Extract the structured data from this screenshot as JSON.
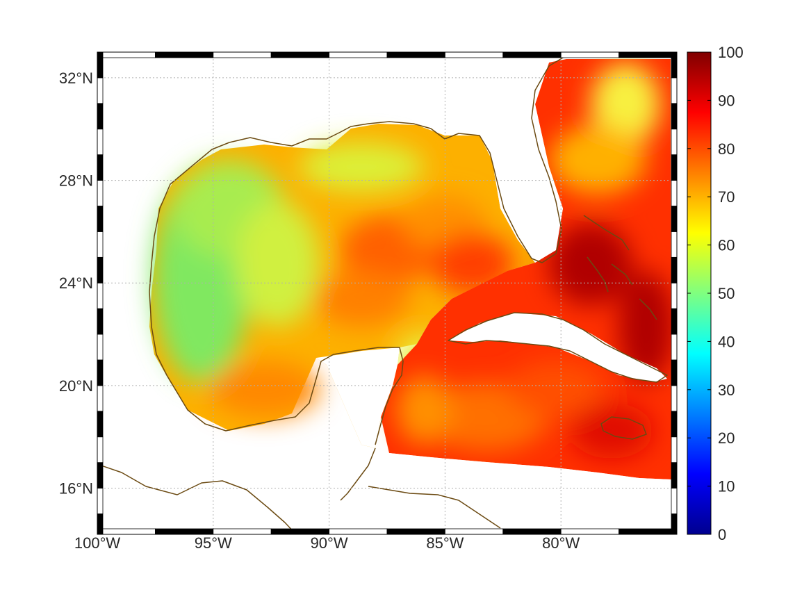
{
  "map": {
    "region": "Gulf of Mexico and Western Caribbean",
    "lon_range": [
      -100,
      -75
    ],
    "lat_range": [
      14.2,
      33
    ],
    "lon_ticks": [
      {
        "value": -100,
        "label": "100°W"
      },
      {
        "value": -95,
        "label": "95°W"
      },
      {
        "value": -90,
        "label": "90°W"
      },
      {
        "value": -85,
        "label": "85°W"
      },
      {
        "value": -80,
        "label": "80°W"
      }
    ],
    "lat_ticks": [
      {
        "value": 32,
        "label": "32°N"
      },
      {
        "value": 28,
        "label": "28°N"
      },
      {
        "value": 24,
        "label": "24°N"
      },
      {
        "value": 20,
        "label": "20°N"
      },
      {
        "value": 16,
        "label": "16°N"
      }
    ],
    "grid": true,
    "coastline_color": "#6b4a12",
    "field_range": [
      0,
      100
    ],
    "colormap": "jet"
  },
  "colorbar": {
    "range": [
      0,
      100
    ],
    "ticks": [
      {
        "value": 100,
        "label": "100"
      },
      {
        "value": 90,
        "label": "90"
      },
      {
        "value": 80,
        "label": "80"
      },
      {
        "value": 70,
        "label": "70"
      },
      {
        "value": 60,
        "label": "60"
      },
      {
        "value": 50,
        "label": "50"
      },
      {
        "value": 40,
        "label": "40"
      },
      {
        "value": 30,
        "label": "30"
      },
      {
        "value": 20,
        "label": "20"
      },
      {
        "value": 10,
        "label": "10"
      },
      {
        "value": 0,
        "label": "0"
      }
    ]
  }
}
